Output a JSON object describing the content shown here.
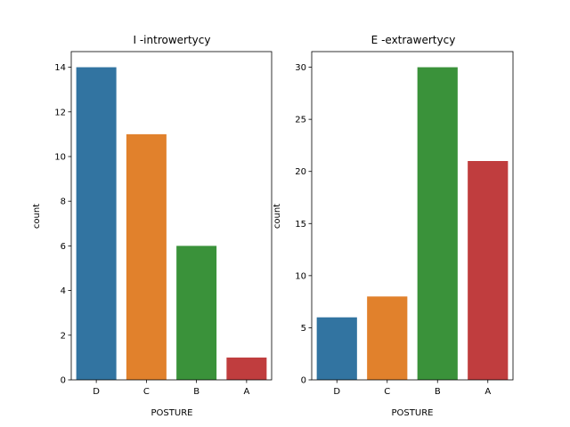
{
  "chart_data": [
    {
      "type": "bar",
      "title": "I -introwertycy",
      "xlabel": "POSTURE",
      "ylabel": "count",
      "categories": [
        "D",
        "C",
        "B",
        "A"
      ],
      "values": [
        14,
        11,
        6,
        1
      ],
      "colors": [
        "#3274a1",
        "#e1812c",
        "#3a923a",
        "#c03d3e"
      ],
      "ylim": [
        0,
        14.7
      ],
      "yticks": [
        0,
        2,
        4,
        6,
        8,
        10,
        12,
        14
      ],
      "grid": false
    },
    {
      "type": "bar",
      "title": "E -extrawertycy",
      "xlabel": "POSTURE",
      "ylabel": "count",
      "categories": [
        "D",
        "C",
        "B",
        "A"
      ],
      "values": [
        6,
        8,
        30,
        21
      ],
      "colors": [
        "#3274a1",
        "#e1812c",
        "#3a923a",
        "#c03d3e"
      ],
      "ylim": [
        0,
        31.5
      ],
      "yticks": [
        0,
        5,
        10,
        15,
        20,
        25,
        30
      ],
      "grid": false
    }
  ]
}
